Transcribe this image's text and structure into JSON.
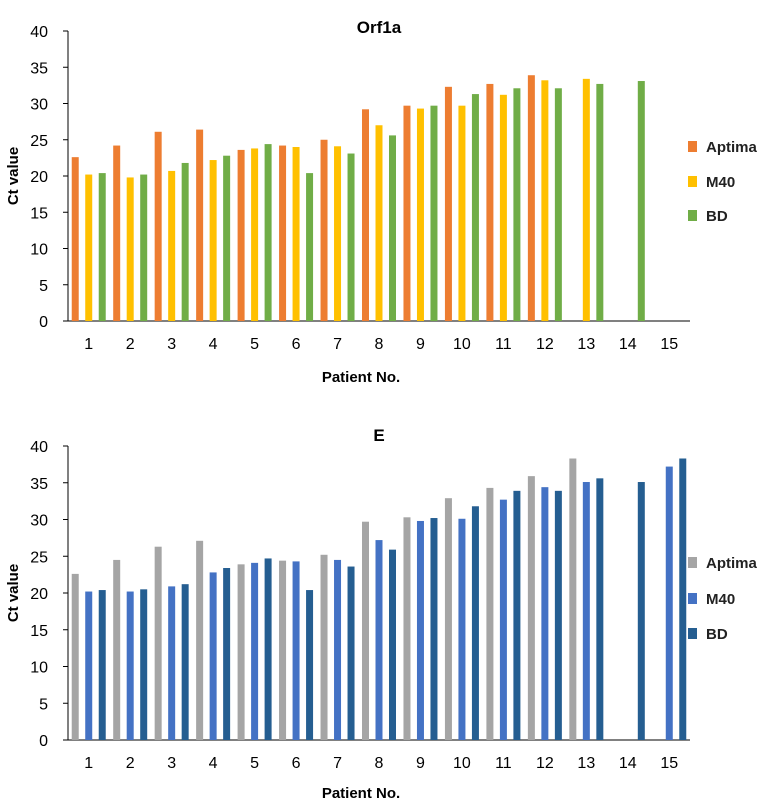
{
  "chart_data": [
    {
      "type": "bar",
      "title": "Orf1a",
      "xlabel": "Patient No.",
      "ylabel": "Ct value",
      "ylim": [
        0,
        40
      ],
      "yticks": [
        0,
        5,
        10,
        15,
        20,
        25,
        30,
        35,
        40
      ],
      "categories": [
        "1",
        "2",
        "3",
        "4",
        "5",
        "6",
        "7",
        "8",
        "9",
        "10",
        "11",
        "12",
        "13",
        "14",
        "15"
      ],
      "legend_position": "right",
      "series": [
        {
          "name": "Aptima",
          "color": "#ED7D31",
          "values": [
            22.6,
            24.2,
            26.1,
            26.4,
            23.6,
            24.2,
            25.0,
            29.2,
            29.7,
            32.3,
            32.7,
            33.9,
            null,
            null,
            null
          ]
        },
        {
          "name": "M40",
          "color": "#FFC000",
          "values": [
            20.2,
            19.8,
            20.7,
            22.2,
            23.8,
            24.0,
            24.1,
            27.0,
            29.3,
            29.7,
            31.2,
            33.2,
            33.4,
            null,
            null
          ]
        },
        {
          "name": "BD",
          "color": "#70AD47",
          "values": [
            20.4,
            20.2,
            21.8,
            22.8,
            24.4,
            20.4,
            23.1,
            25.6,
            29.7,
            31.3,
            32.1,
            32.1,
            32.7,
            33.1,
            null
          ]
        }
      ]
    },
    {
      "type": "bar",
      "title": "E",
      "xlabel": "Patient No.",
      "ylabel": "Ct value",
      "ylim": [
        0,
        40
      ],
      "yticks": [
        0,
        5,
        10,
        15,
        20,
        25,
        30,
        35,
        40
      ],
      "categories": [
        "1",
        "2",
        "3",
        "4",
        "5",
        "6",
        "7",
        "8",
        "9",
        "10",
        "11",
        "12",
        "13",
        "14",
        "15"
      ],
      "legend_position": "right",
      "series": [
        {
          "name": "Aptima",
          "color": "#A5A5A5",
          "values": [
            22.6,
            24.5,
            26.3,
            27.1,
            23.9,
            24.4,
            25.2,
            29.7,
            30.3,
            32.9,
            34.3,
            35.9,
            38.3,
            null,
            null
          ]
        },
        {
          "name": "M40",
          "color": "#4472C4",
          "values": [
            20.2,
            20.2,
            20.9,
            22.8,
            24.1,
            24.3,
            24.5,
            27.2,
            29.8,
            30.1,
            32.7,
            34.4,
            35.1,
            null,
            37.2
          ]
        },
        {
          "name": "BD",
          "color": "#255E91",
          "values": [
            20.4,
            20.5,
            21.2,
            23.4,
            24.7,
            20.4,
            23.6,
            25.9,
            30.2,
            31.8,
            33.9,
            33.9,
            35.6,
            35.1,
            38.3
          ]
        }
      ]
    }
  ]
}
